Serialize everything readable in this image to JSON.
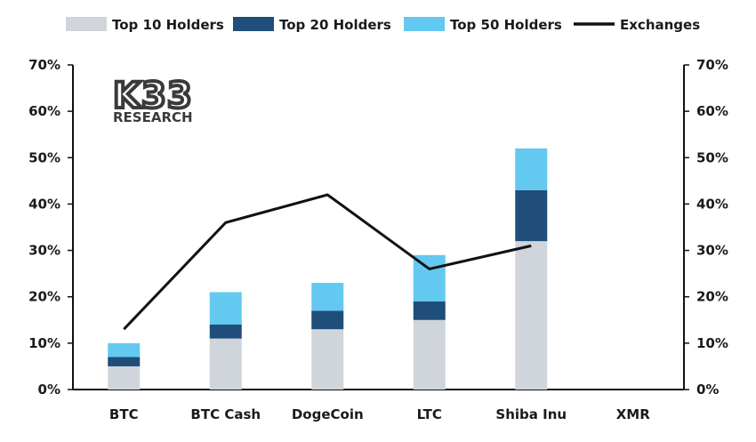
{
  "chart_data": {
    "type": "bar",
    "stacked": true,
    "categories": [
      "BTC",
      "BTC Cash",
      "DogeCoin",
      "LTC",
      "Shiba Inu",
      "XMR"
    ],
    "series": [
      {
        "name": "Top 10 Holders",
        "kind": "bar",
        "color": "#d0d5dc",
        "values": [
          5,
          11,
          13,
          15,
          32,
          0
        ]
      },
      {
        "name": "Top 20 Holders",
        "kind": "bar",
        "color": "#1f4e7a",
        "values": [
          2,
          3,
          4,
          4,
          11,
          0
        ]
      },
      {
        "name": "Top 50 Holders",
        "kind": "bar",
        "color": "#63c9f0",
        "values": [
          3,
          7,
          6,
          10,
          9,
          0
        ]
      },
      {
        "name": "Exchanges",
        "kind": "line",
        "color": "#111111",
        "values": [
          13,
          36,
          42,
          26,
          31,
          null
        ]
      }
    ],
    "ylim": [
      0,
      70
    ],
    "yticks": [
      "0%",
      "10%",
      "20%",
      "30%",
      "40%",
      "50%",
      "60%",
      "70%"
    ],
    "secondary_yticks": [
      "0%",
      "10%",
      "20%",
      "30%",
      "40%",
      "50%",
      "60%",
      "70%"
    ],
    "legend_position": "top",
    "grid": false
  },
  "logo": {
    "main": "K33",
    "sub": "RESEARCH"
  }
}
